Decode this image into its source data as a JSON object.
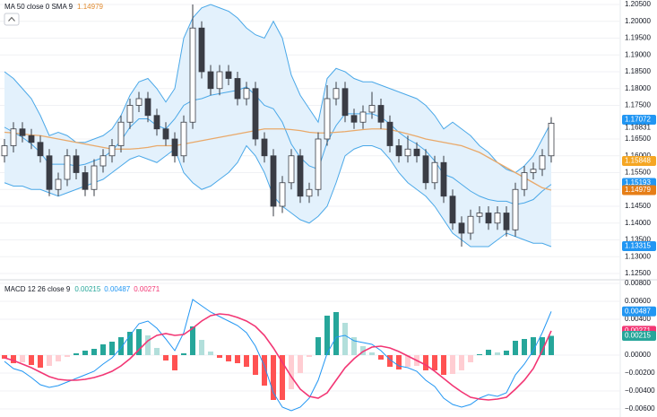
{
  "chart_data": [
    {
      "type": "candlestick",
      "legend_label": "MA 50 close 0 SMA 9",
      "legend_value": 1.14979,
      "legend_value_color": "#e08a2e",
      "ylim": [
        1.12367,
        1.20633
      ],
      "yticks": [
        {
          "value": 1.205,
          "label": "1.20500"
        },
        {
          "value": 1.2,
          "label": "1.20000"
        },
        {
          "value": 1.195,
          "label": "1.19500"
        },
        {
          "value": 1.19,
          "label": "1.19000"
        },
        {
          "value": 1.185,
          "label": "1.18500"
        },
        {
          "value": 1.18,
          "label": "1.18000"
        },
        {
          "value": 1.175,
          "label": "1.17500"
        },
        {
          "value": 1.165,
          "label": "1.16500"
        },
        {
          "value": 1.16,
          "label": "1.16000"
        },
        {
          "value": 1.155,
          "label": "1.15500"
        },
        {
          "value": 1.15,
          "label": "1.15000"
        },
        {
          "value": 1.145,
          "label": "1.14500"
        },
        {
          "value": 1.14,
          "label": "1.14000"
        },
        {
          "value": 1.135,
          "label": "1.13500"
        },
        {
          "value": 1.13,
          "label": "1.13000"
        },
        {
          "value": 1.125,
          "label": "1.12500"
        }
      ],
      "grid": true,
      "up_color": "#ffffff",
      "down_color": "#3a3d45",
      "wick_color": "#3a3d45",
      "open": [
        1.16,
        1.163,
        1.168,
        1.166,
        1.164,
        1.16,
        1.15,
        1.153,
        1.16,
        1.155,
        1.15,
        1.157,
        1.16,
        1.163,
        1.17,
        1.175,
        1.177,
        1.172,
        1.168,
        1.165,
        1.16,
        1.17,
        1.198,
        1.185,
        1.18,
        1.185,
        1.183,
        1.177,
        1.18,
        1.165,
        1.16,
        1.145,
        1.152,
        1.16,
        1.148,
        1.15,
        1.165,
        1.177,
        1.18,
        1.172,
        1.17,
        1.173,
        1.175,
        1.17,
        1.163,
        1.16,
        1.162,
        1.16,
        1.152,
        1.158,
        1.148,
        1.14,
        1.137,
        1.142,
        1.143,
        1.14,
        1.143,
        1.138,
        1.15,
        1.155,
        1.156,
        1.16
      ],
      "high": [
        1.165,
        1.17,
        1.17,
        1.168,
        1.166,
        1.162,
        1.155,
        1.162,
        1.162,
        1.157,
        1.159,
        1.162,
        1.165,
        1.172,
        1.177,
        1.179,
        1.179,
        1.174,
        1.17,
        1.167,
        1.172,
        1.205,
        1.2,
        1.187,
        1.187,
        1.187,
        1.185,
        1.182,
        1.182,
        1.167,
        1.162,
        1.154,
        1.162,
        1.162,
        1.152,
        1.167,
        1.181,
        1.182,
        1.182,
        1.174,
        1.175,
        1.179,
        1.177,
        1.172,
        1.165,
        1.166,
        1.164,
        1.162,
        1.16,
        1.16,
        1.15,
        1.142,
        1.144,
        1.145,
        1.145,
        1.145,
        1.145,
        1.152,
        1.157,
        1.158,
        1.162,
        1.1715
      ],
      "low": [
        1.158,
        1.161,
        1.164,
        1.162,
        1.158,
        1.148,
        1.148,
        1.151,
        1.153,
        1.148,
        1.148,
        1.155,
        1.158,
        1.161,
        1.168,
        1.173,
        1.17,
        1.166,
        1.163,
        1.158,
        1.158,
        1.168,
        1.183,
        1.178,
        1.178,
        1.181,
        1.175,
        1.175,
        1.163,
        1.158,
        1.142,
        1.143,
        1.15,
        1.146,
        1.146,
        1.148,
        1.163,
        1.175,
        1.17,
        1.168,
        1.168,
        1.171,
        1.168,
        1.161,
        1.158,
        1.158,
        1.158,
        1.15,
        1.15,
        1.146,
        1.138,
        1.133,
        1.135,
        1.14,
        1.138,
        1.138,
        1.136,
        1.136,
        1.148,
        1.153,
        1.154,
        1.158
      ],
      "close": [
        1.163,
        1.168,
        1.166,
        1.164,
        1.16,
        1.15,
        1.153,
        1.16,
        1.155,
        1.15,
        1.157,
        1.16,
        1.163,
        1.17,
        1.175,
        1.177,
        1.172,
        1.168,
        1.165,
        1.16,
        1.17,
        1.198,
        1.185,
        1.18,
        1.185,
        1.183,
        1.177,
        1.18,
        1.165,
        1.16,
        1.145,
        1.152,
        1.16,
        1.148,
        1.15,
        1.165,
        1.177,
        1.18,
        1.172,
        1.17,
        1.173,
        1.175,
        1.17,
        1.163,
        1.16,
        1.162,
        1.16,
        1.152,
        1.158,
        1.148,
        1.14,
        1.137,
        1.142,
        1.143,
        1.14,
        1.143,
        1.138,
        1.15,
        1.155,
        1.156,
        1.16,
        1.1697
      ],
      "bands": {
        "color": "#4aa8e8",
        "fill": "#e3f1fc",
        "upper": [
          1.185,
          1.183,
          1.18,
          1.177,
          1.172,
          1.166,
          1.167,
          1.166,
          1.164,
          1.164,
          1.165,
          1.166,
          1.168,
          1.172,
          1.178,
          1.182,
          1.183,
          1.18,
          1.176,
          1.18,
          1.195,
          1.201,
          1.204,
          1.205,
          1.204,
          1.203,
          1.201,
          1.198,
          1.196,
          1.195,
          1.2,
          1.195,
          1.184,
          1.178,
          1.174,
          1.17,
          1.183,
          1.186,
          1.185,
          1.183,
          1.182,
          1.182,
          1.181,
          1.18,
          1.179,
          1.178,
          1.177,
          1.175,
          1.172,
          1.168,
          1.17,
          1.168,
          1.166,
          1.163,
          1.161,
          1.158,
          1.156,
          1.155,
          1.157,
          1.16,
          1.165,
          1.17
        ],
        "lower": [
          1.152,
          1.151,
          1.151,
          1.15,
          1.15,
          1.149,
          1.148,
          1.149,
          1.15,
          1.151,
          1.152,
          1.153,
          1.155,
          1.157,
          1.159,
          1.16,
          1.159,
          1.158,
          1.16,
          1.162,
          1.155,
          1.152,
          1.15,
          1.151,
          1.153,
          1.155,
          1.158,
          1.163,
          1.16,
          1.155,
          1.148,
          1.145,
          1.143,
          1.141,
          1.14,
          1.142,
          1.145,
          1.152,
          1.16,
          1.162,
          1.163,
          1.163,
          1.162,
          1.159,
          1.155,
          1.152,
          1.15,
          1.148,
          1.145,
          1.141,
          1.137,
          1.135,
          1.133,
          1.133,
          1.133,
          1.135,
          1.137,
          1.136,
          1.135,
          1.134,
          1.134,
          1.133
        ],
        "basis": [
          1.1685,
          1.167,
          1.1655,
          1.1635,
          1.161,
          1.1575,
          1.1575,
          1.1575,
          1.157,
          1.1575,
          1.1585,
          1.1595,
          1.1615,
          1.1645,
          1.1685,
          1.171,
          1.171,
          1.169,
          1.168,
          1.171,
          1.175,
          1.1765,
          1.177,
          1.178,
          1.1785,
          1.179,
          1.1795,
          1.1805,
          1.178,
          1.175,
          1.174,
          1.17,
          1.1635,
          1.1595,
          1.157,
          1.156,
          1.164,
          1.169,
          1.1725,
          1.1725,
          1.1725,
          1.1725,
          1.1715,
          1.1695,
          1.167,
          1.165,
          1.1635,
          1.1615,
          1.1585,
          1.1545,
          1.1535,
          1.1515,
          1.1495,
          1.148,
          1.147,
          1.1465,
          1.1465,
          1.1455,
          1.146,
          1.147,
          1.1495,
          1.1515
        ]
      },
      "ma": {
        "color": "#e9a96a",
        "values": [
          1.167,
          1.1668,
          1.1665,
          1.1662,
          1.166,
          1.1655,
          1.165,
          1.1645,
          1.164,
          1.1635,
          1.163,
          1.1625,
          1.162,
          1.162,
          1.162,
          1.1622,
          1.1625,
          1.163,
          1.163,
          1.163,
          1.1635,
          1.164,
          1.1645,
          1.165,
          1.1655,
          1.166,
          1.1665,
          1.167,
          1.1675,
          1.168,
          1.168,
          1.168,
          1.1678,
          1.1675,
          1.167,
          1.1668,
          1.1668,
          1.167,
          1.1672,
          1.1675,
          1.1678,
          1.168,
          1.168,
          1.1678,
          1.1672,
          1.1665,
          1.1658,
          1.165,
          1.1645,
          1.164,
          1.1635,
          1.163,
          1.162,
          1.161,
          1.1595,
          1.158,
          1.1565,
          1.155,
          1.1535,
          1.152,
          1.1505,
          1.14979
        ]
      },
      "price_labels": [
        {
          "value": 1.17072,
          "color": "#2196f3"
        },
        {
          "value": 1.16831,
          "color": null
        },
        {
          "value": 1.15848,
          "color": "#f5a623"
        },
        {
          "value": 1.15193,
          "color": "#2196f3"
        },
        {
          "value": 1.14979,
          "color": "#e67e17"
        },
        {
          "value": 1.13315,
          "color": "#2196f3"
        }
      ]
    },
    {
      "type": "macd",
      "legend_label": "MACD 12 26 close 9",
      "legend_values": [
        {
          "value": 0.00215,
          "color": "#26a69a"
        },
        {
          "value": 0.00487,
          "color": "#2196f3"
        },
        {
          "value": 0.00271,
          "color": "#f23674"
        }
      ],
      "ylim": [
        -0.0069,
        0.0082
      ],
      "yticks": [
        {
          "value": 0.008,
          "label": "0.00800"
        },
        {
          "value": 0.006,
          "label": "0.00600"
        },
        {
          "value": 0.004,
          "label": "0.00400"
        },
        {
          "value": 0,
          "label": "0.00000"
        },
        {
          "value": -0.002,
          "label": "−0.00200"
        },
        {
          "value": -0.004,
          "label": "−0.00400"
        },
        {
          "value": -0.006,
          "label": "−0.00600"
        }
      ],
      "grid": true,
      "macd": {
        "color": "#2196f3",
        "values": [
          -0.0007,
          -0.0015,
          -0.0018,
          -0.0025,
          -0.0033,
          -0.0036,
          -0.0034,
          -0.003,
          -0.0026,
          -0.0022,
          -0.0018,
          -0.001,
          -0.0003,
          0.0008,
          0.0022,
          0.0035,
          0.0038,
          0.003,
          0.0018,
          0.0005,
          0.0025,
          0.0062,
          0.0055,
          0.0048,
          0.0043,
          0.0038,
          0.0033,
          0.0025,
          0.001,
          -0.0012,
          -0.0042,
          -0.0058,
          -0.0062,
          -0.0058,
          -0.0048,
          -0.0028,
          0.0002,
          0.002,
          0.0022,
          0.0016,
          0.0014,
          0.0012,
          0.0005,
          -0.0005,
          -0.0012,
          -0.0014,
          -0.0018,
          -0.0028,
          -0.0035,
          -0.0048,
          -0.0055,
          -0.0058,
          -0.0055,
          -0.0048,
          -0.0044,
          -0.0046,
          -0.0042,
          -0.0022,
          -0.001,
          0.0005,
          0.0025,
          0.00487
        ]
      },
      "signal": {
        "color": "#f23674",
        "values": [
          -0.0003,
          -0.0006,
          -0.001,
          -0.0014,
          -0.0019,
          -0.0024,
          -0.0027,
          -0.0028,
          -0.0028,
          -0.0027,
          -0.0025,
          -0.0022,
          -0.0018,
          -0.0012,
          -0.0004,
          0.0006,
          0.0016,
          0.0022,
          0.0024,
          0.0022,
          0.0023,
          0.003,
          0.0038,
          0.0044,
          0.0046,
          0.0045,
          0.0042,
          0.0038,
          0.0032,
          0.0022,
          0.0008,
          -0.0008,
          -0.0024,
          -0.0038,
          -0.0046,
          -0.0048,
          -0.0042,
          -0.0028,
          -0.0014,
          -0.0004,
          0.0004,
          0.0009,
          0.001,
          0.0008,
          0.0004,
          -0.0001,
          -0.0006,
          -0.0011,
          -0.0018,
          -0.0026,
          -0.0034,
          -0.0041,
          -0.0047,
          -0.0049,
          -0.005,
          -0.0049,
          -0.0047,
          -0.0038,
          -0.0028,
          -0.0015,
          0.0005,
          0.00271
        ]
      },
      "histogram": {
        "colors": {
          "up_strong": "#26a69a",
          "up_weak": "#b2dfdb",
          "down_strong": "#ff5252",
          "down_weak": "#ffcdd2"
        },
        "values": [
          -0.0004,
          -0.0009,
          -0.0008,
          -0.0011,
          -0.0014,
          -0.0012,
          -0.0007,
          -0.0002,
          0.0002,
          0.0005,
          0.0007,
          0.0012,
          0.0015,
          0.002,
          0.0026,
          0.0029,
          0.0022,
          0.0008,
          -0.0006,
          -0.0017,
          0.0002,
          0.0032,
          0.0017,
          0.0004,
          -0.0003,
          -0.0007,
          -0.0009,
          -0.0013,
          -0.0022,
          -0.0034,
          -0.005,
          -0.005,
          -0.0038,
          -0.002,
          -0.0002,
          0.002,
          0.0044,
          0.0048,
          0.0036,
          0.002,
          0.001,
          0.0003,
          -0.0005,
          -0.0013,
          -0.0016,
          -0.0013,
          -0.0012,
          -0.0017,
          -0.0017,
          -0.0022,
          -0.0021,
          -0.0017,
          -0.0008,
          0.0001,
          0.0006,
          0.0003,
          0.0005,
          0.0016,
          0.0018,
          0.002,
          0.002,
          0.00215
        ]
      },
      "price_labels": [
        {
          "value": 0.00487,
          "color": "#2196f3"
        },
        {
          "value": 0.00271,
          "color": "#f23674"
        },
        {
          "value": 0.00215,
          "color": "#26a69a"
        }
      ]
    }
  ]
}
